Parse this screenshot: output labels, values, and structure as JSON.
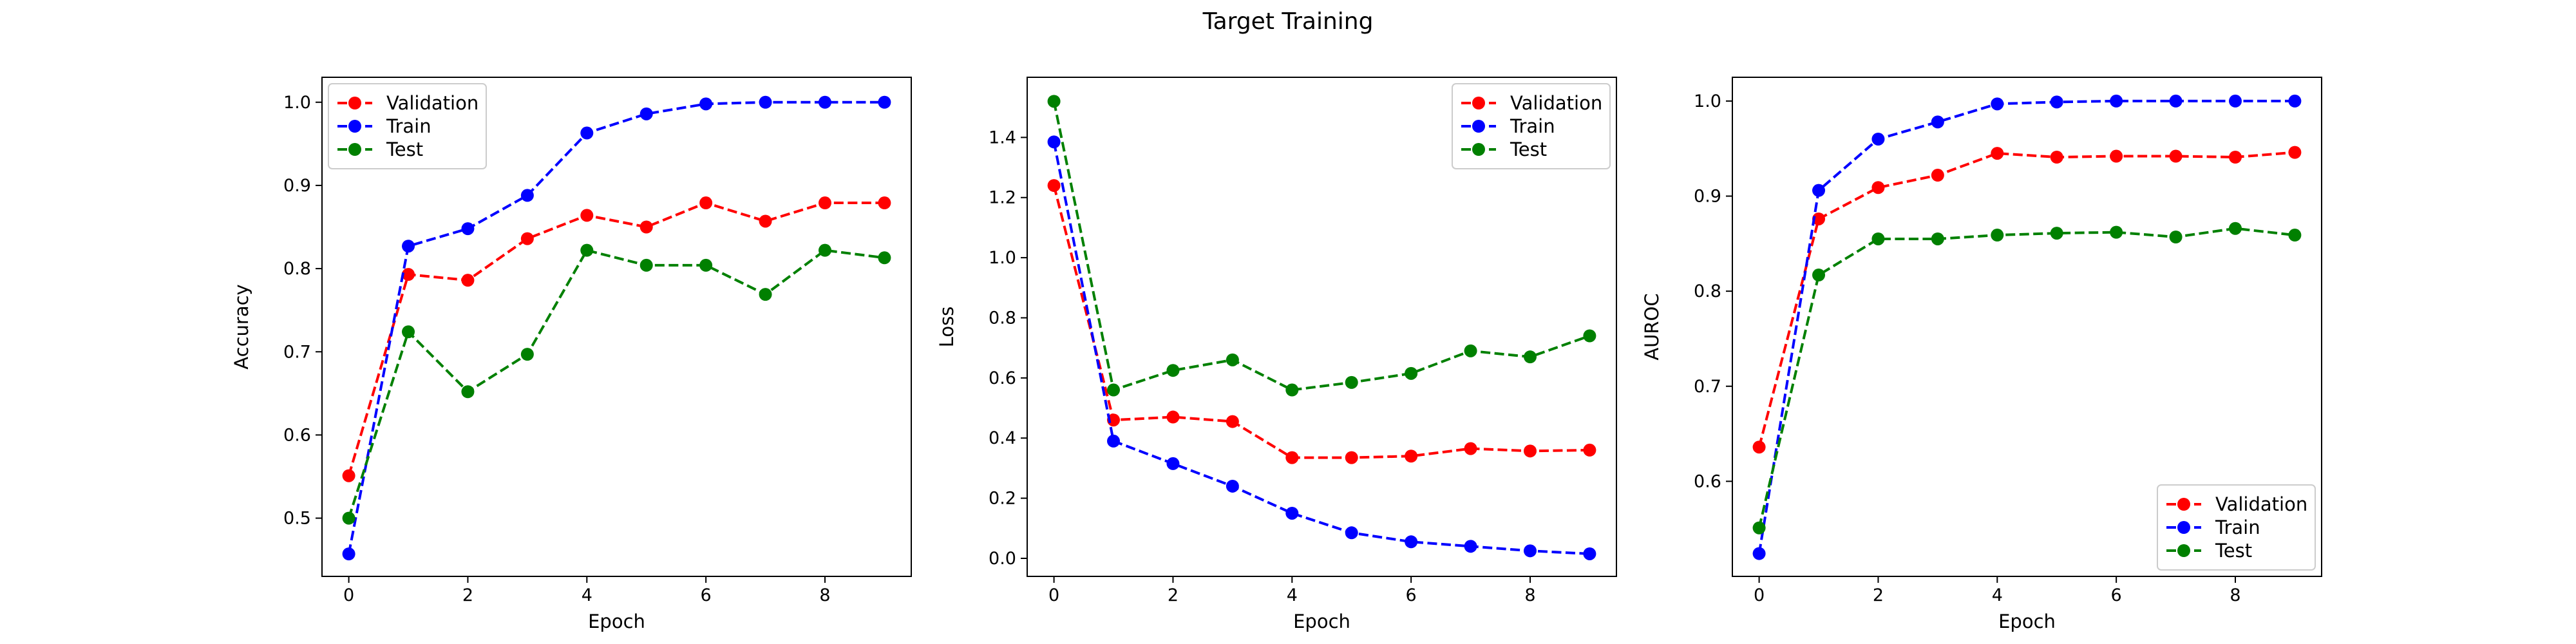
{
  "figure": {
    "title": "Target Training",
    "colors": {
      "validation": "#ff0000",
      "train": "#0000ff",
      "test": "#008000"
    }
  },
  "chart_data": [
    {
      "type": "line",
      "title": "",
      "xlabel": "Epoch",
      "ylabel": "Accuracy",
      "x": [
        0,
        1,
        2,
        3,
        4,
        5,
        6,
        7,
        8,
        9
      ],
      "xlim": [
        -0.45,
        9.45
      ],
      "ylim": [
        0.43,
        1.03
      ],
      "xticks": [
        0,
        2,
        4,
        6,
        8
      ],
      "yticks": [
        0.5,
        0.6,
        0.7,
        0.8,
        0.9,
        1.0
      ],
      "ytick_labels": [
        "0.5",
        "0.6",
        "0.7",
        "0.8",
        "0.9",
        "1.0"
      ],
      "legend_position": "upper left",
      "series": [
        {
          "name": "Validation",
          "color": "#ff0000",
          "values": [
            0.551,
            0.793,
            0.786,
            0.836,
            0.864,
            0.85,
            0.879,
            0.857,
            0.879,
            0.879
          ]
        },
        {
          "name": "Train",
          "color": "#0000ff",
          "values": [
            0.457,
            0.827,
            0.848,
            0.888,
            0.963,
            0.986,
            0.998,
            1.0,
            1.0,
            1.0
          ]
        },
        {
          "name": "Test",
          "color": "#008000",
          "values": [
            0.5,
            0.724,
            0.652,
            0.697,
            0.822,
            0.804,
            0.804,
            0.769,
            0.822,
            0.813
          ]
        }
      ]
    },
    {
      "type": "line",
      "title": "",
      "xlabel": "Epoch",
      "ylabel": "Loss",
      "x": [
        0,
        1,
        2,
        3,
        4,
        5,
        6,
        7,
        8,
        9
      ],
      "xlim": [
        -0.45,
        9.45
      ],
      "ylim": [
        -0.06,
        1.6
      ],
      "xticks": [
        0,
        2,
        4,
        6,
        8
      ],
      "yticks": [
        0.0,
        0.2,
        0.4,
        0.6,
        0.8,
        1.0,
        1.2,
        1.4
      ],
      "ytick_labels": [
        "0.0",
        "0.2",
        "0.4",
        "0.6",
        "0.8",
        "1.0",
        "1.2",
        "1.4"
      ],
      "legend_position": "upper right",
      "series": [
        {
          "name": "Validation",
          "color": "#ff0000",
          "values": [
            1.24,
            0.46,
            0.47,
            0.455,
            0.335,
            0.335,
            0.34,
            0.365,
            0.357,
            0.36
          ]
        },
        {
          "name": "Train",
          "color": "#0000ff",
          "values": [
            1.385,
            0.39,
            0.315,
            0.24,
            0.15,
            0.085,
            0.055,
            0.04,
            0.025,
            0.015
          ]
        },
        {
          "name": "Test",
          "color": "#008000",
          "values": [
            1.52,
            0.56,
            0.625,
            0.66,
            0.56,
            0.585,
            0.615,
            0.69,
            0.67,
            0.74
          ]
        }
      ]
    },
    {
      "type": "line",
      "title": "",
      "xlabel": "Epoch",
      "ylabel": "AUROC",
      "x": [
        0,
        1,
        2,
        3,
        4,
        5,
        6,
        7,
        8,
        9
      ],
      "xlim": [
        -0.45,
        9.45
      ],
      "ylim": [
        0.5,
        1.025
      ],
      "xticks": [
        0,
        2,
        4,
        6,
        8
      ],
      "yticks": [
        0.6,
        0.7,
        0.8,
        0.9,
        1.0
      ],
      "ytick_labels": [
        "0.6",
        "0.7",
        "0.8",
        "0.9",
        "1.0"
      ],
      "legend_position": "lower right",
      "series": [
        {
          "name": "Validation",
          "color": "#ff0000",
          "values": [
            0.636,
            0.876,
            0.909,
            0.922,
            0.945,
            0.941,
            0.942,
            0.942,
            0.941,
            0.946
          ]
        },
        {
          "name": "Train",
          "color": "#0000ff",
          "values": [
            0.524,
            0.906,
            0.96,
            0.978,
            0.997,
            0.999,
            1.0,
            1.0,
            1.0,
            1.0
          ]
        },
        {
          "name": "Test",
          "color": "#008000",
          "values": [
            0.551,
            0.817,
            0.855,
            0.855,
            0.859,
            0.861,
            0.862,
            0.857,
            0.866,
            0.859
          ]
        }
      ]
    }
  ]
}
